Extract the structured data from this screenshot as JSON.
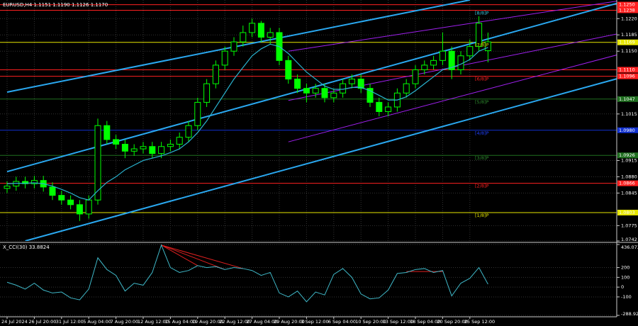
{
  "chart_data": [
    {
      "type": "candlestick",
      "title": "EURUSD,H4  1.1151 1.1190 1.1126 1.1170",
      "categories": [
        "24 Jul 2024",
        null,
        null,
        "26 Jul 20:00",
        null,
        null,
        "31 Jul 12:00",
        null,
        null,
        "5 Aug 04:00",
        null,
        null,
        "7 Aug 20:00",
        null,
        null,
        "12 Aug 12:00",
        null,
        null,
        "15 Aug 04:00",
        null,
        null,
        "19 Aug 20:00",
        null,
        null,
        "22 Aug 12:00",
        null,
        null,
        "27 Aug 04:00",
        null,
        null,
        "29 Aug 20:00",
        null,
        null,
        "3 Sep 12:00",
        null,
        null,
        "6 Sep 04:00",
        null,
        null,
        "10 Sep 20:00",
        null,
        null,
        "13 Sep 12:00",
        null,
        null,
        "18 Sep 04:00",
        null,
        null,
        "20 Sep 20:00",
        null,
        null,
        "25 Sep 12:00",
        null,
        null
      ],
      "open": [
        1.0855,
        1.086,
        1.087,
        1.0865,
        1.0872,
        1.0858,
        1.084,
        1.083,
        1.082,
        1.08,
        1.083,
        1.099,
        1.096,
        1.095,
        1.0935,
        1.094,
        1.0945,
        1.093,
        1.0945,
        1.095,
        1.0965,
        1.099,
        1.104,
        1.108,
        1.112,
        1.115,
        1.117,
        1.119,
        1.121,
        1.118,
        1.119,
        1.113,
        1.109,
        1.107,
        1.106,
        1.107,
        1.105,
        1.106,
        1.108,
        1.109,
        1.107,
        1.104,
        1.102,
        1.103,
        1.106,
        1.108,
        1.111,
        1.112,
        1.113,
        1.115,
        1.111,
        1.114,
        1.116,
        1.1151
      ],
      "high": [
        1.087,
        1.088,
        1.088,
        1.0882,
        1.0882,
        1.0868,
        1.085,
        1.084,
        1.083,
        1.084,
        1.1005,
        1.1,
        1.097,
        1.096,
        1.095,
        1.0955,
        1.0955,
        1.0955,
        1.096,
        1.0975,
        1.1,
        1.105,
        1.109,
        1.113,
        1.116,
        1.118,
        1.1205,
        1.122,
        1.1215,
        1.12,
        1.12,
        1.114,
        1.11,
        1.108,
        1.108,
        1.108,
        1.107,
        1.109,
        1.11,
        1.11,
        1.108,
        1.105,
        1.104,
        1.107,
        1.109,
        1.112,
        1.113,
        1.114,
        1.119,
        1.116,
        1.115,
        1.1175,
        1.1225,
        1.119
      ],
      "low": [
        1.0845,
        1.085,
        1.0855,
        1.0855,
        1.0848,
        1.083,
        1.082,
        1.081,
        1.0785,
        1.079,
        1.082,
        1.095,
        1.094,
        1.092,
        1.0925,
        1.093,
        1.092,
        1.092,
        1.0935,
        1.094,
        1.0955,
        1.098,
        1.103,
        1.107,
        1.111,
        1.114,
        1.116,
        1.118,
        1.117,
        1.1165,
        1.112,
        1.108,
        1.106,
        1.104,
        1.105,
        1.104,
        1.104,
        1.105,
        1.107,
        1.106,
        1.103,
        1.101,
        1.101,
        1.102,
        1.105,
        1.107,
        1.11,
        1.111,
        1.112,
        1.109,
        1.11,
        1.113,
        1.115,
        1.1126
      ],
      "close": [
        1.086,
        1.087,
        1.0865,
        1.0872,
        1.0858,
        1.084,
        1.083,
        1.082,
        1.08,
        1.083,
        1.099,
        1.096,
        1.095,
        1.0935,
        1.094,
        1.0945,
        1.093,
        1.0945,
        1.095,
        1.0965,
        1.099,
        1.104,
        1.108,
        1.112,
        1.115,
        1.117,
        1.119,
        1.121,
        1.118,
        1.119,
        1.113,
        1.109,
        1.107,
        1.106,
        1.107,
        1.105,
        1.106,
        1.108,
        1.109,
        1.107,
        1.104,
        1.102,
        1.103,
        1.106,
        1.108,
        1.111,
        1.112,
        1.113,
        1.115,
        1.111,
        1.114,
        1.116,
        1.121,
        1.117
      ],
      "color": "#00ff00",
      "ma": {
        "color": "#2ab4d0",
        "values": [
          1.0865,
          1.0866,
          1.0866,
          1.0867,
          1.0865,
          1.086,
          1.0853,
          1.0845,
          1.0835,
          1.083,
          1.085,
          1.0868,
          1.088,
          1.0895,
          1.0905,
          1.0915,
          1.092,
          1.0925,
          1.0932,
          1.094,
          1.0955,
          1.0975,
          1.1,
          1.103,
          1.106,
          1.109,
          1.1115,
          1.114,
          1.1155,
          1.1165,
          1.116,
          1.1145,
          1.1125,
          1.1105,
          1.109,
          1.1075,
          1.1068,
          1.1068,
          1.1072,
          1.1072,
          1.1065,
          1.1055,
          1.1045,
          1.1045,
          1.1052,
          1.1065,
          1.108,
          1.1095,
          1.111,
          1.1115,
          1.1122,
          1.1132,
          1.115,
          1.1158
        ]
      },
      "ylim": [
        1.0742,
        1.126
      ],
      "yticks": [
        {
          "value": 1.122,
          "label": "1.1220"
        },
        {
          "value": 1.1185,
          "label": "1.1185"
        },
        {
          "value": 1.115,
          "label": "1.1150"
        },
        {
          "value": 1.1015,
          "label": "1.1015"
        },
        {
          "value": 1.0915,
          "label": "1.0915"
        },
        {
          "value": 1.088,
          "label": "1.0880"
        },
        {
          "value": 1.0845,
          "label": "1.0845"
        },
        {
          "value": 1.0775,
          "label": "1.0775"
        },
        {
          "value": 1.0742,
          "label": "1.0742"
        }
      ],
      "grid": true,
      "levels": [
        {
          "value": 1.125,
          "label": "1.1250",
          "color": "#ff2020"
        },
        {
          "value": 1.1238,
          "label": "1.1238",
          "color": "#ff2020",
          "tag": "[8/8]P",
          "tag_color": "#3cc8e0"
        },
        {
          "value": 1.1169,
          "label": "1.1169",
          "color": "#e6e600",
          "tag": "[7/8]P",
          "tag_color": "#e6e600"
        },
        {
          "value": 1.111,
          "label": "1.1110",
          "color": "#ff2020"
        },
        {
          "value": 1.1096,
          "label": "1.1096",
          "color": "#ff2020",
          "tag": "[6/8]P",
          "tag_color": "#ff2020"
        },
        {
          "value": 1.1047,
          "label": "1.1047",
          "color": "#1f6e1f",
          "tag": "[5/8]P",
          "tag_color": "#2e8b2e"
        },
        {
          "value": 1.098,
          "label": "1.0980",
          "color": "#1030d0",
          "tag": "[4/8]P",
          "tag_color": "#2040ff"
        },
        {
          "value": 1.0926,
          "label": "1.0926",
          "color": "#1f6e1f",
          "tag": "[3/8]P",
          "tag_color": "#2e8b2e"
        },
        {
          "value": 1.0866,
          "label": "1.0866",
          "color": "#ff2020",
          "tag": "[2/8]P",
          "tag_color": "#ff2020"
        },
        {
          "value": 1.0803,
          "label": "1.0803",
          "color": "#e6e600",
          "tag": "[1/8]P",
          "tag_color": "#e6e600"
        }
      ],
      "channels": [
        {
          "color": "#2aa8f0",
          "points": [
            [
              0,
              1.1062
            ],
            [
              51,
              1.126
            ]
          ]
        },
        {
          "color": "#2aa8f0",
          "points": [
            [
              0,
              1.0891
            ],
            [
              68,
              1.1257
            ]
          ]
        },
        {
          "color": "#2aa8f0",
          "points": [
            [
              2,
              1.0742
            ],
            [
              68,
              1.1095
            ]
          ]
        },
        {
          "color": "#a020f0",
          "points": [
            [
              31,
              1.115
            ],
            [
              68,
              1.126
            ]
          ]
        },
        {
          "color": "#a020f0",
          "points": [
            [
              31,
              1.1044
            ],
            [
              68,
              1.119
            ]
          ]
        },
        {
          "color": "#a020f0",
          "points": [
            [
              31,
              1.0955
            ],
            [
              68,
              1.1146
            ]
          ]
        }
      ]
    },
    {
      "type": "line",
      "title": "X_CCI(30) 33.8824",
      "series": [
        {
          "color": "#3fb8c8",
          "values": [
            50,
            20,
            -20,
            40,
            -30,
            -60,
            -50,
            -110,
            -130,
            -20,
            300,
            180,
            120,
            -40,
            40,
            20,
            150,
            430,
            200,
            150,
            170,
            220,
            200,
            210,
            180,
            200,
            190,
            170,
            120,
            150,
            -60,
            -100,
            -40,
            -150,
            -50,
            -80,
            130,
            190,
            100,
            -70,
            -120,
            -110,
            -30,
            140,
            150,
            180,
            190,
            150,
            170,
            -90,
            40,
            90,
            200,
            30
          ]
        }
      ],
      "ylim": [
        -288.9232,
        436.0738
      ],
      "yticks": [
        {
          "value": 436.0738,
          "label": "436.0738"
        },
        200,
        100,
        0,
        -100,
        {
          "value": -288.9232,
          "label": "-288.9232"
        }
      ],
      "lines": [
        {
          "color": "#e02020",
          "points": [
            [
              17,
              430
            ],
            [
              26,
              190
            ]
          ]
        },
        {
          "color": "#e02020",
          "points": [
            [
              17,
              430
            ],
            [
              24,
              180
            ]
          ]
        },
        {
          "color": "#e02020",
          "points": [
            [
              17,
              430
            ],
            [
              21,
              220
            ]
          ]
        },
        {
          "color": "#e02020",
          "points": [
            [
              44,
              160
            ],
            [
              48,
              160
            ]
          ]
        }
      ]
    }
  ]
}
